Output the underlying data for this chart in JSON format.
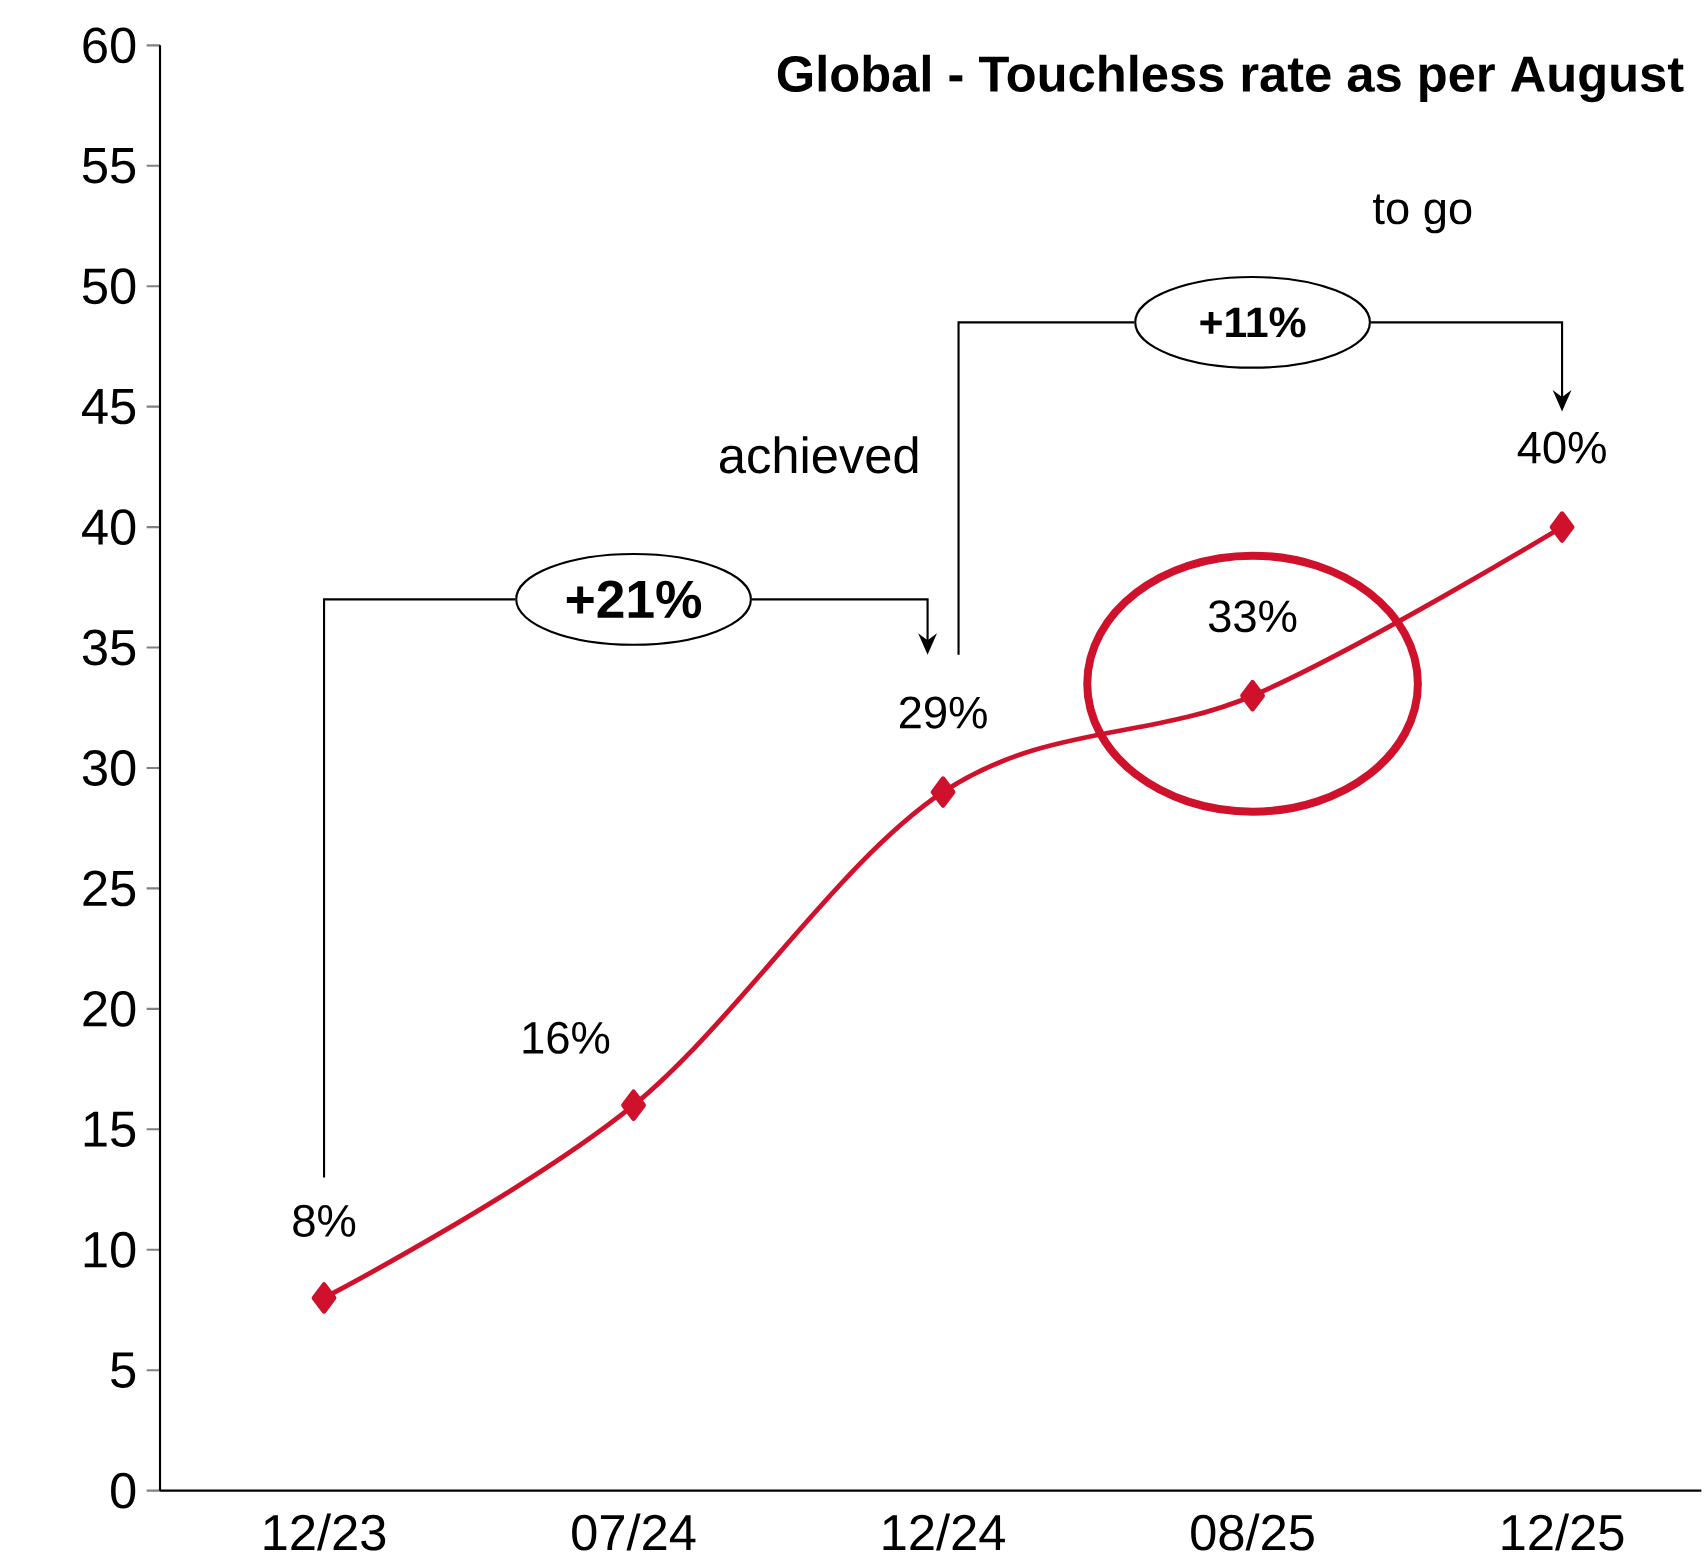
{
  "chart_data": {
    "type": "line",
    "title": "Global - Touchless rate as per August",
    "categories": [
      "12/23",
      "07/24",
      "12/24",
      "08/25",
      "12/25"
    ],
    "values": [
      8,
      16,
      29,
      33,
      40
    ],
    "value_labels": [
      "8%",
      "16%",
      "29%",
      "33%",
      "40%"
    ],
    "color": "#d0112b",
    "marker": "diamond",
    "line_style": "solid",
    "ylim": [
      0,
      60
    ],
    "yticks": [
      0,
      5,
      10,
      15,
      20,
      25,
      30,
      35,
      40,
      45,
      50,
      55,
      60
    ],
    "annotations": [
      "+21%",
      "achieved",
      "+11%",
      "to go"
    ]
  }
}
